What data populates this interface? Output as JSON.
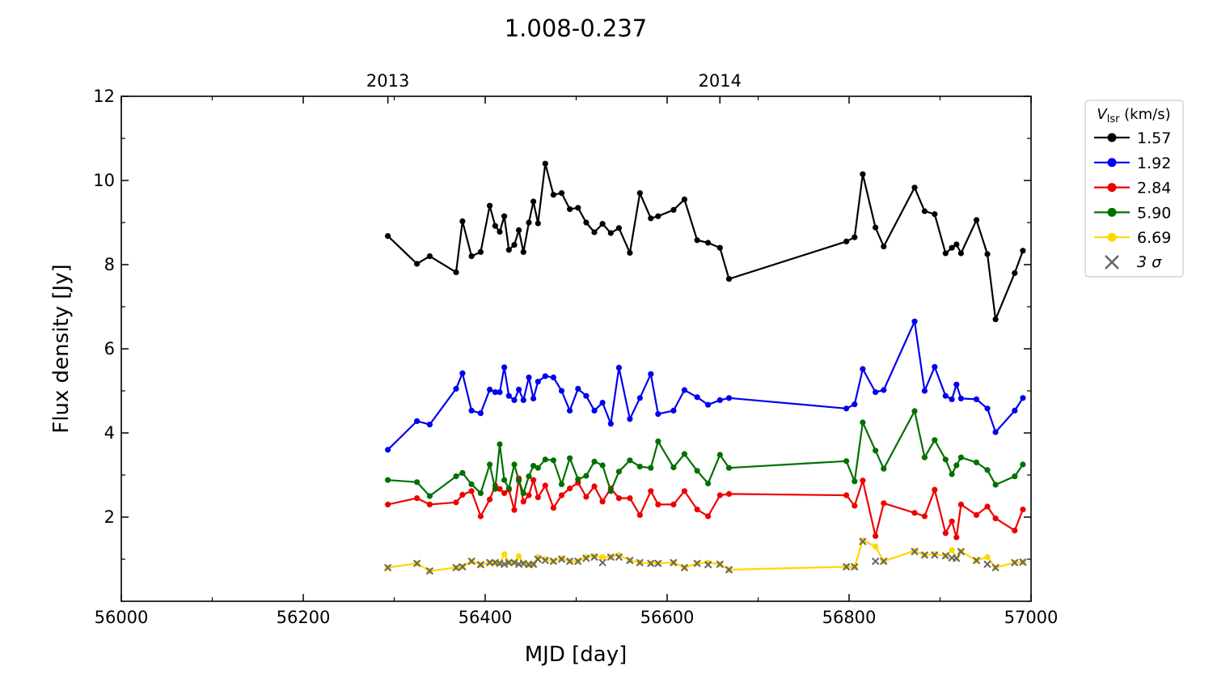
{
  "chart_data": {
    "type": "line",
    "title": "1.008-0.237",
    "xlabel": "MJD [day]",
    "ylabel": "Flux density [Jy]",
    "xlim": [
      56000,
      57000
    ],
    "ylim": [
      0,
      12
    ],
    "x_ticks": [
      56000,
      56200,
      56400,
      56600,
      56800,
      57000
    ],
    "y_ticks": [
      2,
      4,
      6,
      8,
      10,
      12
    ],
    "top_axis_ticks": [
      {
        "label": "2013",
        "x": 56293
      },
      {
        "label": "2014",
        "x": 56658
      }
    ],
    "legend_title": {
      "symbol": "V",
      "subscript": "lsr",
      "unit": " (km/s)"
    },
    "legend_placement": "right-outside-top",
    "grid": false,
    "sigma_marker": {
      "name": "3 σ",
      "color": "#666666"
    },
    "series": [
      {
        "name": "1.57",
        "color": "#000000",
        "x": [
          56293,
          56325,
          56339,
          56368,
          56375,
          56385,
          56395,
          56405,
          56411,
          56416,
          56421,
          56426,
          56432,
          56437,
          56442,
          56448,
          56453,
          56458,
          56466,
          56475,
          56484,
          56493,
          56502,
          56511,
          56520,
          56529,
          56538,
          56547,
          56559,
          56570,
          56582,
          56590,
          56607,
          56619,
          56633,
          56645,
          56658,
          56668,
          56797,
          56806,
          56815,
          56829,
          56838,
          56872,
          56883,
          56894,
          56906,
          56913,
          56918,
          56923,
          56940,
          56952,
          56961,
          56982,
          56991
        ],
        "y": [
          8.68,
          8.02,
          8.2,
          7.82,
          9.03,
          8.2,
          8.3,
          9.4,
          8.92,
          8.78,
          9.15,
          8.35,
          8.47,
          8.82,
          8.3,
          9.0,
          9.5,
          8.98,
          10.4,
          9.66,
          9.7,
          9.32,
          9.35,
          9.0,
          8.77,
          8.97,
          8.75,
          8.87,
          8.28,
          9.7,
          9.1,
          9.15,
          9.3,
          9.55,
          8.58,
          8.52,
          8.4,
          7.66,
          8.55,
          8.65,
          10.15,
          8.88,
          8.43,
          9.83,
          9.27,
          9.2,
          8.27,
          8.4,
          8.48,
          8.27,
          9.06,
          8.25,
          6.7,
          7.8,
          8.33
        ]
      },
      {
        "name": "1.92",
        "color": "#0000ee",
        "x": [
          56293,
          56325,
          56339,
          56368,
          56375,
          56385,
          56395,
          56405,
          56411,
          56416,
          56421,
          56426,
          56432,
          56437,
          56442,
          56448,
          56453,
          56458,
          56466,
          56475,
          56484,
          56493,
          56502,
          56511,
          56520,
          56529,
          56538,
          56547,
          56559,
          56570,
          56582,
          56590,
          56607,
          56619,
          56633,
          56645,
          56658,
          56668,
          56797,
          56806,
          56815,
          56829,
          56838,
          56872,
          56883,
          56894,
          56906,
          56913,
          56918,
          56923,
          56940,
          56952,
          56961,
          56982,
          56991
        ],
        "y": [
          3.6,
          4.28,
          4.2,
          5.05,
          5.42,
          4.53,
          4.47,
          5.03,
          4.97,
          4.97,
          5.56,
          4.88,
          4.78,
          5.03,
          4.78,
          5.32,
          4.82,
          5.22,
          5.35,
          5.32,
          5.0,
          4.53,
          5.05,
          4.88,
          4.53,
          4.72,
          4.22,
          5.55,
          4.33,
          4.83,
          5.4,
          4.45,
          4.53,
          5.02,
          4.85,
          4.67,
          4.78,
          4.83,
          4.58,
          4.68,
          5.52,
          4.97,
          5.02,
          6.65,
          5.0,
          5.57,
          4.88,
          4.8,
          5.15,
          4.82,
          4.8,
          4.58,
          4.02,
          4.53,
          4.83
        ]
      },
      {
        "name": "2.84",
        "color": "#ee0000",
        "x": [
          56293,
          56325,
          56339,
          56368,
          56375,
          56385,
          56395,
          56405,
          56411,
          56416,
          56421,
          56426,
          56432,
          56437,
          56442,
          56448,
          56453,
          56458,
          56466,
          56475,
          56484,
          56493,
          56502,
          56511,
          56520,
          56529,
          56538,
          56547,
          56559,
          56570,
          56582,
          56590,
          56607,
          56619,
          56633,
          56645,
          56658,
          56668,
          56797,
          56806,
          56815,
          56829,
          56838,
          56872,
          56883,
          56894,
          56906,
          56913,
          56918,
          56923,
          56940,
          56952,
          56961,
          56982,
          56991
        ],
        "y": [
          2.3,
          2.45,
          2.3,
          2.35,
          2.53,
          2.62,
          2.02,
          2.42,
          2.75,
          2.67,
          2.57,
          2.65,
          2.17,
          2.92,
          2.37,
          2.52,
          2.88,
          2.47,
          2.75,
          2.22,
          2.52,
          2.68,
          2.82,
          2.48,
          2.73,
          2.37,
          2.68,
          2.45,
          2.45,
          2.05,
          2.62,
          2.3,
          2.3,
          2.62,
          2.18,
          2.02,
          2.52,
          2.55,
          2.52,
          2.27,
          2.87,
          1.55,
          2.33,
          2.1,
          2.02,
          2.65,
          1.62,
          1.9,
          1.52,
          2.3,
          2.05,
          2.25,
          1.97,
          1.68,
          2.18
        ]
      },
      {
        "name": "5.90",
        "color": "#007000",
        "x": [
          56293,
          56325,
          56339,
          56368,
          56375,
          56385,
          56395,
          56405,
          56411,
          56416,
          56421,
          56426,
          56432,
          56437,
          56442,
          56448,
          56453,
          56458,
          56466,
          56475,
          56484,
          56493,
          56502,
          56511,
          56520,
          56529,
          56538,
          56547,
          56559,
          56570,
          56582,
          56590,
          56607,
          56619,
          56633,
          56645,
          56658,
          56668,
          56797,
          56806,
          56815,
          56829,
          56838,
          56872,
          56883,
          56894,
          56906,
          56913,
          56918,
          56923,
          56940,
          56952,
          56961,
          56982,
          56991
        ],
        "y": [
          2.88,
          2.83,
          2.5,
          2.97,
          3.05,
          2.78,
          2.57,
          3.25,
          2.67,
          3.73,
          2.88,
          2.68,
          3.25,
          2.87,
          2.57,
          2.97,
          3.22,
          3.17,
          3.37,
          3.35,
          2.78,
          3.4,
          2.9,
          2.98,
          3.32,
          3.23,
          2.62,
          3.08,
          3.35,
          3.2,
          3.17,
          3.8,
          3.18,
          3.5,
          3.1,
          2.8,
          3.48,
          3.17,
          3.33,
          2.85,
          4.25,
          3.58,
          3.15,
          4.52,
          3.42,
          3.83,
          3.37,
          3.02,
          3.23,
          3.42,
          3.3,
          3.12,
          2.77,
          2.97,
          3.25
        ]
      },
      {
        "name": "6.69",
        "color": "#ffd700",
        "x": [
          56293,
          56325,
          56339,
          56368,
          56375,
          56385,
          56395,
          56405,
          56411,
          56416,
          56421,
          56426,
          56432,
          56437,
          56442,
          56448,
          56453,
          56458,
          56466,
          56475,
          56484,
          56493,
          56502,
          56511,
          56520,
          56529,
          56538,
          56547,
          56559,
          56570,
          56582,
          56590,
          56607,
          56619,
          56633,
          56645,
          56658,
          56668,
          56797,
          56806,
          56815,
          56829,
          56838,
          56872,
          56883,
          56894,
          56906,
          56913,
          56918,
          56923,
          56940,
          56952,
          56961,
          56982,
          56991
        ],
        "y": [
          0.8,
          0.9,
          0.72,
          0.8,
          0.82,
          0.95,
          0.87,
          0.92,
          0.92,
          0.9,
          1.12,
          0.92,
          0.92,
          1.07,
          0.9,
          0.87,
          0.88,
          1.05,
          1.0,
          0.95,
          1.02,
          0.95,
          0.95,
          1.05,
          1.07,
          1.05,
          1.05,
          1.1,
          0.97,
          0.92,
          0.9,
          0.9,
          0.92,
          0.8,
          0.9,
          0.92,
          0.88,
          0.75,
          0.82,
          0.82,
          1.45,
          1.3,
          0.95,
          1.2,
          1.1,
          1.12,
          1.08,
          1.22,
          1.02,
          1.18,
          0.97,
          1.05,
          0.8,
          0.92,
          0.93
        ]
      }
    ],
    "sigma_points": {
      "x": [
        56293,
        56325,
        56339,
        56368,
        56375,
        56385,
        56395,
        56405,
        56411,
        56416,
        56421,
        56426,
        56432,
        56437,
        56442,
        56448,
        56453,
        56458,
        56466,
        56475,
        56484,
        56493,
        56502,
        56511,
        56520,
        56529,
        56538,
        56547,
        56559,
        56570,
        56582,
        56590,
        56607,
        56619,
        56633,
        56645,
        56658,
        56668,
        56797,
        56806,
        56815,
        56829,
        56838,
        56872,
        56883,
        56894,
        56906,
        56913,
        56918,
        56923,
        56940,
        56952,
        56961,
        56982,
        56991
      ],
      "y": [
        0.8,
        0.9,
        0.72,
        0.8,
        0.82,
        0.95,
        0.87,
        0.92,
        0.92,
        0.9,
        0.88,
        0.92,
        0.92,
        0.88,
        0.9,
        0.87,
        0.88,
        1.0,
        0.97,
        0.95,
        1.0,
        0.95,
        0.95,
        1.02,
        1.05,
        0.92,
        1.05,
        1.05,
        0.97,
        0.92,
        0.9,
        0.9,
        0.92,
        0.8,
        0.9,
        0.87,
        0.88,
        0.75,
        0.82,
        0.82,
        1.42,
        0.95,
        0.95,
        1.18,
        1.1,
        1.1,
        1.08,
        1.03,
        1.02,
        1.18,
        0.97,
        0.88,
        0.8,
        0.92,
        0.93
      ]
    }
  }
}
